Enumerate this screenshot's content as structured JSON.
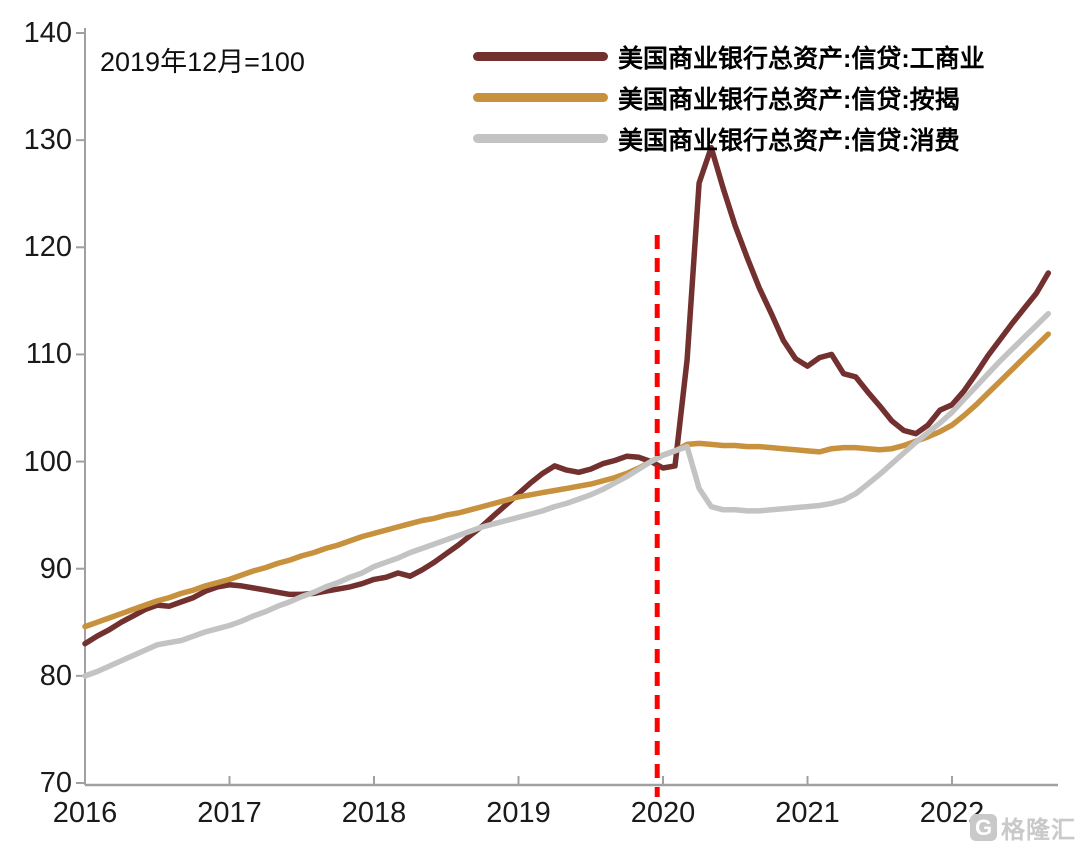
{
  "chart": {
    "annotation": "2019年12月=100"
  },
  "watermark": {
    "logo_letter": "G",
    "text": "格隆汇"
  },
  "chart_data": {
    "type": "line",
    "title": "",
    "xlabel": "",
    "ylabel": "",
    "index_note": "2019年12月=100",
    "grid": false,
    "legend_position": "top",
    "x_axis": {
      "ticks": [
        2016,
        2017,
        2018,
        2019,
        2020,
        2021,
        2022
      ],
      "range": [
        2016.0,
        2022.73
      ]
    },
    "y_axis": {
      "ticks": [
        70,
        80,
        90,
        100,
        110,
        120,
        130,
        140
      ],
      "range": [
        70,
        140
      ]
    },
    "vline": {
      "x_year": 2019.96,
      "color": "#FF0000",
      "style": "dashed"
    },
    "axis_color": "#a0a0a0",
    "series": [
      {
        "name": "美国商业银行总资产:信贷:工商业",
        "color": "#72302F",
        "x_start": 2016.0,
        "x_step": 0.083333,
        "values": [
          83.0,
          83.7,
          84.3,
          85.0,
          85.6,
          86.2,
          86.6,
          86.5,
          86.9,
          87.3,
          87.9,
          88.3,
          88.5,
          88.4,
          88.2,
          88.0,
          87.8,
          87.6,
          87.6,
          87.7,
          87.9,
          88.1,
          88.3,
          88.6,
          89.0,
          89.2,
          89.6,
          89.3,
          89.9,
          90.6,
          91.4,
          92.2,
          93.1,
          94.0,
          95.0,
          96.0,
          97.0,
          98.0,
          98.9,
          99.6,
          99.2,
          99.0,
          99.3,
          99.8,
          100.1,
          100.5,
          100.4,
          100.0,
          99.4,
          99.6,
          109.5,
          126.0,
          129.3,
          125.5,
          122.0,
          119.0,
          116.2,
          113.8,
          111.3,
          109.6,
          108.9,
          109.7,
          110.0,
          108.2,
          107.9,
          106.5,
          105.2,
          103.8,
          102.9,
          102.6,
          103.4,
          104.8,
          105.3,
          106.6,
          108.2,
          109.9,
          111.4,
          112.9,
          114.3,
          115.7,
          117.6
        ]
      },
      {
        "name": "美国商业银行总资产:信贷:按揭",
        "color": "#C8913D",
        "x_start": 2016.0,
        "x_step": 0.083333,
        "values": [
          84.6,
          85.0,
          85.4,
          85.8,
          86.2,
          86.6,
          87.0,
          87.3,
          87.7,
          88.0,
          88.4,
          88.7,
          89.0,
          89.4,
          89.8,
          90.1,
          90.5,
          90.8,
          91.2,
          91.5,
          91.9,
          92.2,
          92.6,
          93.0,
          93.3,
          93.6,
          93.9,
          94.2,
          94.5,
          94.7,
          95.0,
          95.2,
          95.5,
          95.8,
          96.1,
          96.4,
          96.7,
          96.9,
          97.1,
          97.3,
          97.5,
          97.7,
          97.9,
          98.2,
          98.5,
          98.9,
          99.4,
          100.0,
          100.6,
          101.0,
          101.6,
          101.7,
          101.6,
          101.5,
          101.5,
          101.4,
          101.4,
          101.3,
          101.2,
          101.1,
          101.0,
          100.9,
          101.2,
          101.3,
          101.3,
          101.2,
          101.1,
          101.2,
          101.5,
          101.9,
          102.3,
          102.8,
          103.4,
          104.3,
          105.3,
          106.4,
          107.5,
          108.6,
          109.7,
          110.8,
          111.9
        ]
      },
      {
        "name": "美国商业银行总资产:信贷:消费",
        "color": "#C3C3C3",
        "x_start": 2016.0,
        "x_step": 0.083333,
        "values": [
          80.0,
          80.4,
          80.9,
          81.4,
          81.9,
          82.4,
          82.9,
          83.1,
          83.3,
          83.7,
          84.1,
          84.4,
          84.7,
          85.1,
          85.6,
          86.0,
          86.5,
          86.9,
          87.4,
          87.8,
          88.3,
          88.7,
          89.2,
          89.6,
          90.2,
          90.6,
          91.0,
          91.5,
          91.9,
          92.3,
          92.7,
          93.1,
          93.5,
          93.9,
          94.2,
          94.5,
          94.8,
          95.1,
          95.4,
          95.8,
          96.1,
          96.5,
          96.9,
          97.4,
          98.0,
          98.6,
          99.3,
          100.0,
          100.6,
          101.0,
          101.4,
          97.5,
          95.8,
          95.5,
          95.5,
          95.4,
          95.4,
          95.5,
          95.6,
          95.7,
          95.8,
          95.9,
          96.1,
          96.4,
          97.0,
          97.9,
          98.8,
          99.8,
          100.8,
          101.8,
          102.7,
          103.6,
          104.6,
          105.8,
          107.0,
          108.2,
          109.4,
          110.5,
          111.6,
          112.7,
          113.8
        ]
      }
    ]
  }
}
